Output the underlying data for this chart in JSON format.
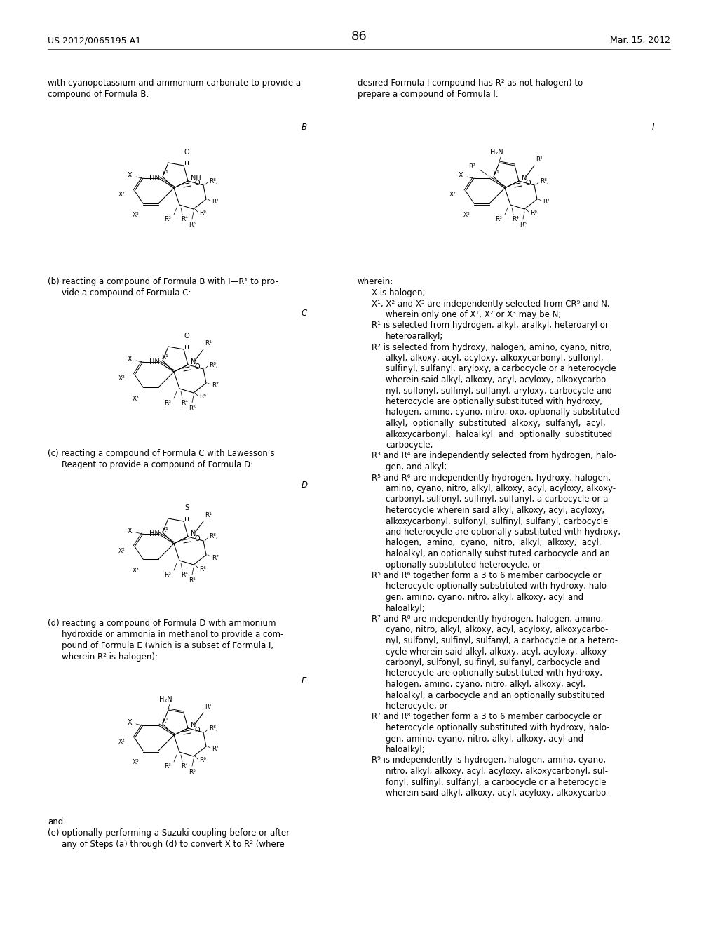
{
  "page_header_left": "US 2012/0065195 A1",
  "page_header_right": "Mar. 15, 2012",
  "page_number": "86",
  "background_color": "#ffffff",
  "text_color": "#000000",
  "font_size_body": 8.5,
  "font_size_header": 9.0,
  "font_size_page_num": 13.0
}
